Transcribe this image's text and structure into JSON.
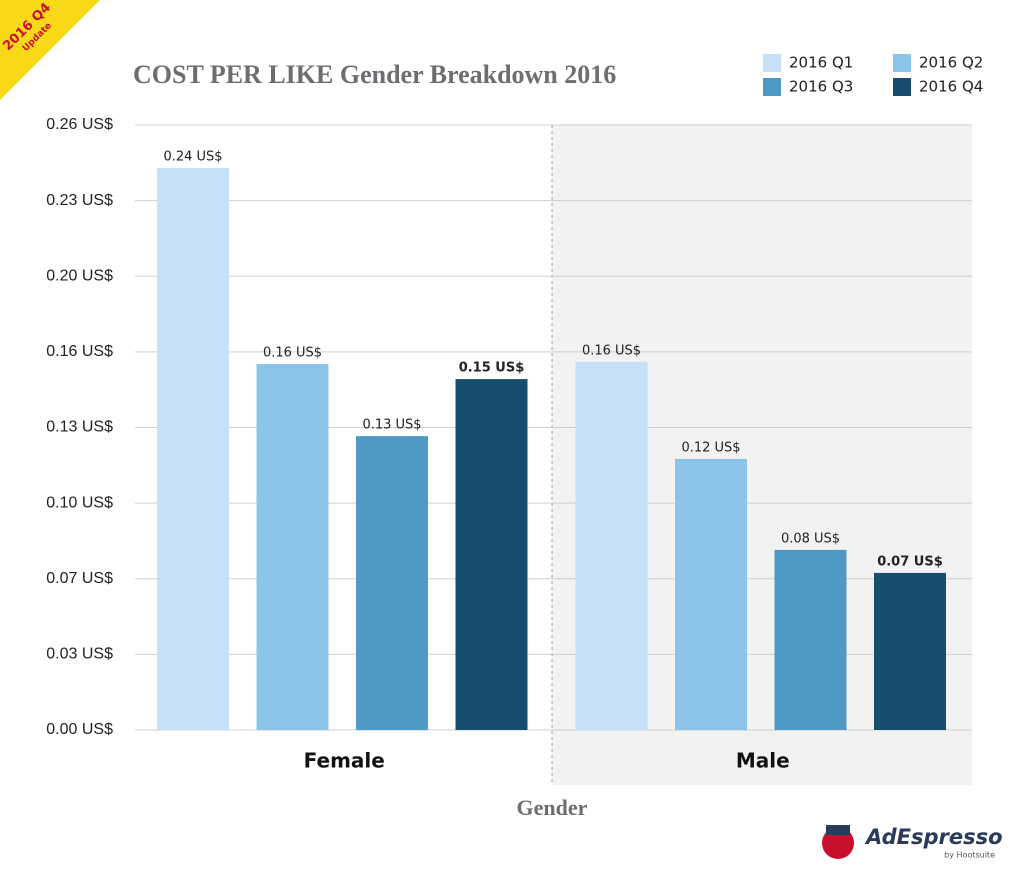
{
  "badge": {
    "line1": "2016 Q4",
    "line2": "Update"
  },
  "logo": {
    "name": "AdEspresso",
    "byline": "by Hootsuite"
  },
  "chart_data": {
    "type": "bar",
    "title": "COST PER LIKE Gender Breakdown 2016",
    "x_label": "Gender",
    "categories": [
      "Female",
      "Male"
    ],
    "series": [
      {
        "name": "2016 Q1",
        "color": "#c6e0f7",
        "values": [
          0.2415,
          0.1582
        ],
        "value_labels": [
          "0.24 US$",
          "0.16 US$"
        ]
      },
      {
        "name": "2016 Q2",
        "color": "#8cc4e9",
        "values": [
          0.1573,
          0.1165
        ],
        "value_labels": [
          "0.16 US$",
          "0.12 US$"
        ]
      },
      {
        "name": "2016 Q3",
        "color": "#4f9ac4",
        "values": [
          0.1263,
          0.0774
        ],
        "value_labels": [
          "0.13 US$",
          "0.08 US$"
        ]
      },
      {
        "name": "2016 Q4",
        "color": "#174e6e",
        "values": [
          0.1508,
          0.0675
        ],
        "value_labels": [
          "0.15 US$",
          "0.07 US$"
        ],
        "label_color": "#c8102e"
      }
    ],
    "ylim": [
      0,
      0.26
    ],
    "yticks": [
      {
        "value": 0,
        "label": "0.00 US$"
      },
      {
        "value": 0.0325,
        "label": "0.03 US$"
      },
      {
        "value": 0.065,
        "label": "0.07 US$"
      },
      {
        "value": 0.0975,
        "label": "0.10 US$"
      },
      {
        "value": 0.13,
        "label": "0.13 US$"
      },
      {
        "value": 0.1625,
        "label": "0.16 US$"
      },
      {
        "value": 0.195,
        "label": "0.20 US$"
      },
      {
        "value": 0.2275,
        "label": "0.23 US$"
      },
      {
        "value": 0.26,
        "label": "0.26 US$"
      }
    ],
    "grid": true,
    "legend": "top-right"
  }
}
